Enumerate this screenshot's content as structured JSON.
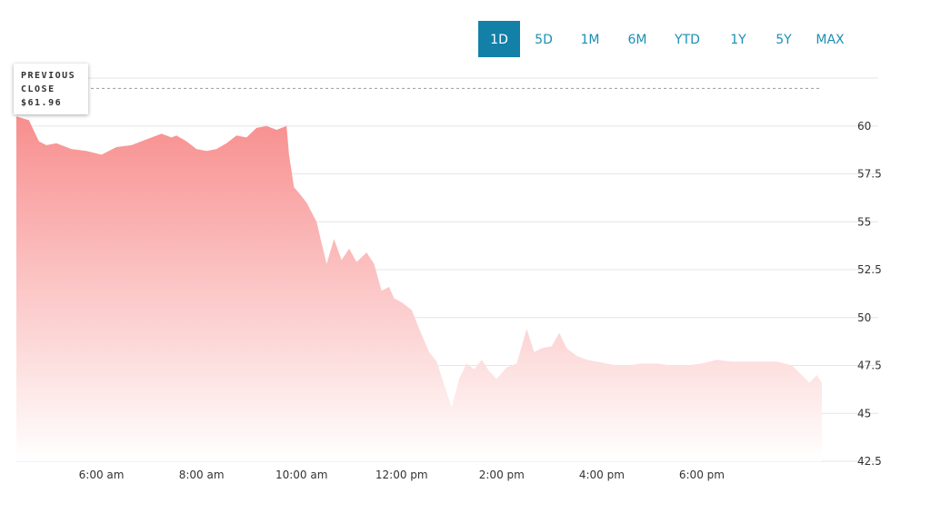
{
  "ranges": [
    {
      "label": "1D",
      "active": true
    },
    {
      "label": "5D",
      "active": false
    },
    {
      "label": "1M",
      "active": false
    },
    {
      "label": "6M",
      "active": false
    },
    {
      "label": "YTD",
      "active": false
    },
    {
      "label": "1Y",
      "active": false
    },
    {
      "label": "5Y",
      "active": false
    },
    {
      "label": "MAX",
      "active": false
    }
  ],
  "tooltip": {
    "line1": "PREVIOUS",
    "line2": "CLOSE",
    "line3": "$61.96"
  },
  "colors": {
    "accent": "#1380a8",
    "range_text": "#1b8fb4",
    "area_top": "#f88e8e",
    "area_bottom": "#ffffff",
    "grid": "#e6e6e6",
    "previous_close_line": "#999999"
  },
  "chart_data": {
    "type": "area",
    "title": "",
    "xlabel": "",
    "ylabel": "",
    "previous_close": 61.96,
    "x_ticks": [
      "6:00 am",
      "8:00 am",
      "10:00 am",
      "12:00 pm",
      "2:00 pm",
      "4:00 pm",
      "6:00 pm"
    ],
    "x_tick_hours": [
      6,
      8,
      10,
      12,
      14,
      16,
      18
    ],
    "xlim_hours": [
      4.3,
      20.4
    ],
    "y_ticks": [
      60,
      57.5,
      55,
      52.5,
      50,
      47.5,
      45,
      42.5
    ],
    "ylim": [
      42.5,
      62.5
    ],
    "grid": true,
    "series": [
      {
        "x_hours": [
          4.3,
          4.55,
          4.75,
          4.9,
          5.1,
          5.4,
          5.7,
          6.0,
          6.3,
          6.6,
          6.9,
          7.2,
          7.4,
          7.5,
          7.7,
          7.9,
          8.1,
          8.3,
          8.5,
          8.7,
          8.9,
          9.1,
          9.3,
          9.5,
          9.7,
          9.75,
          9.85,
          9.95,
          10.1,
          10.3,
          10.5,
          10.65,
          10.8,
          10.95,
          11.1,
          11.3,
          11.45,
          11.6,
          11.75,
          11.85,
          12.0,
          12.2,
          12.4,
          12.55,
          12.7,
          12.85,
          13.0,
          13.15,
          13.3,
          13.45,
          13.6,
          13.75,
          13.9,
          14.1,
          14.3,
          14.5,
          14.65,
          14.8,
          15.0,
          15.15,
          15.3,
          15.5,
          15.7,
          15.9,
          16.1,
          16.3,
          16.5,
          16.8,
          17.1,
          17.4,
          17.7,
          18.0,
          18.3,
          18.6,
          18.9,
          19.2,
          19.5,
          19.8,
          20.0,
          20.15,
          20.3,
          20.4
        ],
        "values": [
          60.5,
          60.3,
          59.2,
          59.0,
          59.1,
          58.8,
          58.7,
          58.5,
          58.9,
          59.0,
          59.3,
          59.6,
          59.4,
          59.5,
          59.2,
          58.8,
          58.7,
          58.8,
          59.1,
          59.5,
          59.4,
          59.9,
          60.0,
          59.8,
          60.0,
          58.5,
          56.8,
          56.5,
          56.0,
          55.0,
          52.8,
          54.1,
          53.0,
          53.6,
          52.9,
          53.4,
          52.8,
          51.4,
          51.6,
          51.0,
          50.8,
          50.4,
          49.1,
          48.2,
          47.7,
          46.5,
          45.3,
          46.8,
          47.6,
          47.3,
          47.8,
          47.2,
          46.8,
          47.4,
          47.6,
          49.4,
          48.2,
          48.4,
          48.5,
          49.2,
          48.4,
          48.0,
          47.8,
          47.7,
          47.6,
          47.5,
          47.5,
          47.6,
          47.6,
          47.5,
          47.5,
          47.6,
          47.8,
          47.7,
          47.7,
          47.7,
          47.7,
          47.5,
          47.0,
          46.6,
          47.0,
          46.6
        ]
      }
    ]
  }
}
